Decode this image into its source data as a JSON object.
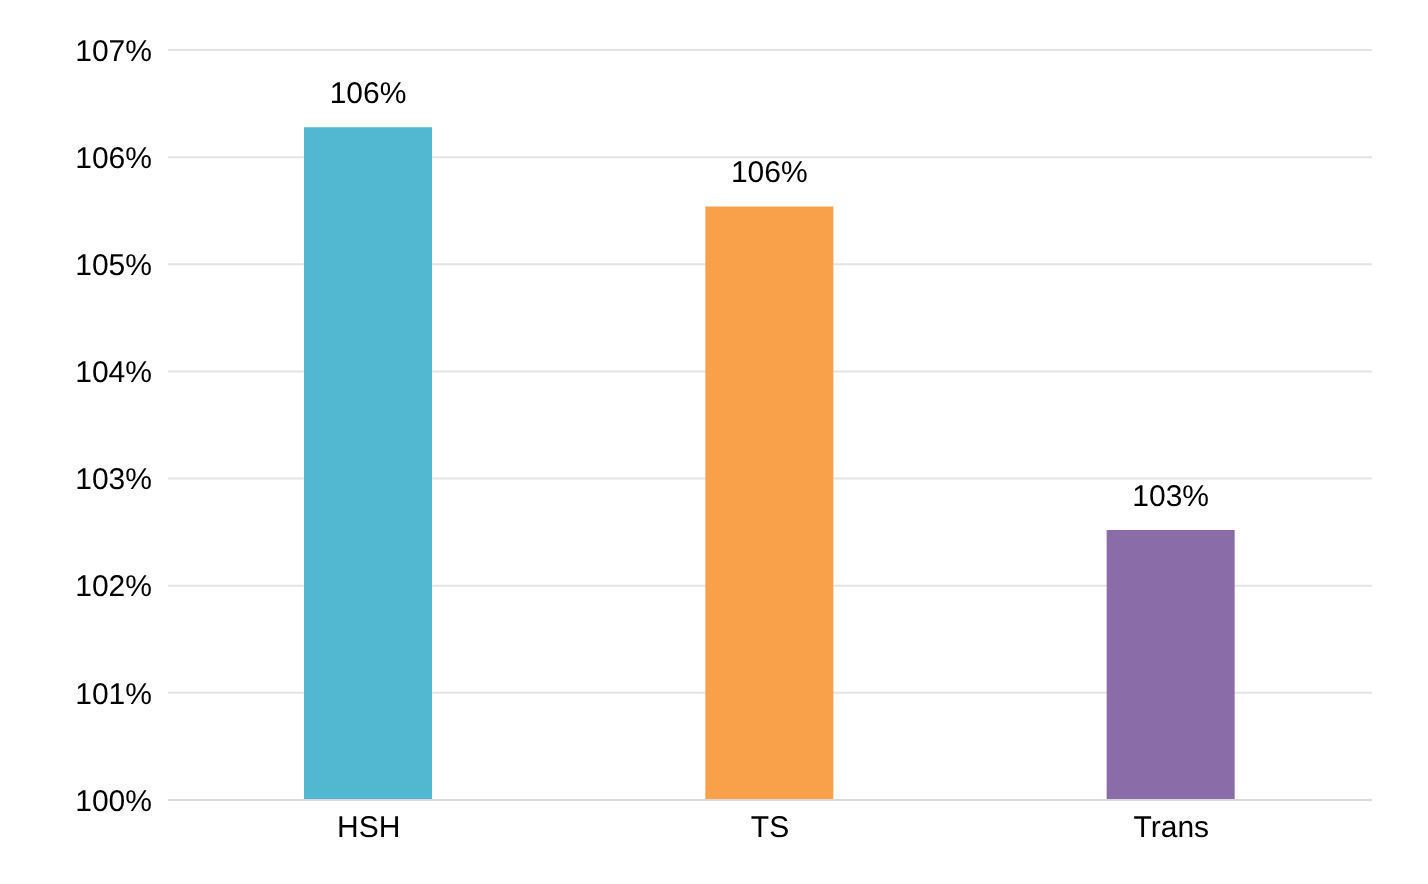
{
  "chart_data": {
    "type": "bar",
    "categories": [
      "HSH",
      "TS",
      "Trans"
    ],
    "values": [
      106.28,
      105.54,
      102.52
    ],
    "colors": [
      "#52b8d2",
      "#f9a04b",
      "#8a6ca8"
    ],
    "value_labels": [
      "106%",
      "106%",
      "103%"
    ],
    "ylim": [
      100,
      107
    ],
    "yticks": [
      {
        "value": 100,
        "label": "100%"
      },
      {
        "value": 101,
        "label": "101%"
      },
      {
        "value": 102,
        "label": "102%"
      },
      {
        "value": 103,
        "label": "103%"
      },
      {
        "value": 104,
        "label": "104%"
      },
      {
        "value": 105,
        "label": "105%"
      },
      {
        "value": 106,
        "label": "106%"
      },
      {
        "value": 107,
        "label": "107%"
      }
    ],
    "grid": "y"
  }
}
